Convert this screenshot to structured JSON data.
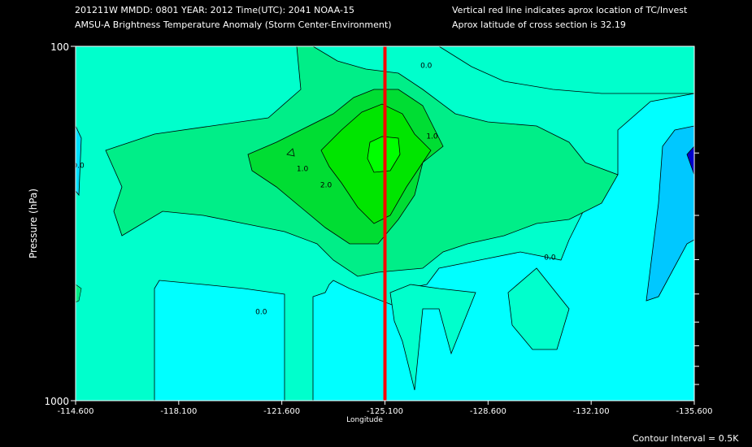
{
  "header": {
    "line1_left": "201211W  MMDD: 0801 YEAR: 2012 Time(UTC): 2041 NOAA-15",
    "line2_left": "AMSU-A Brightness Temperature Anomaly (Storm Center-Environment)",
    "line1_right": "Vertical red line indicates aprox location of TC/Invest",
    "line2_right": "Aprox latitude of cross section is 32.19"
  },
  "footer": {
    "contour_interval": "Contour Interval = 0.5K"
  },
  "colors": {
    "background": "#000000",
    "level_neg1_0": "#00c8ff",
    "level_neg2_neg1": "#0000cc",
    "level_0_1": "#00ffcc",
    "level_1_2": "#00ee88",
    "level_2_3": "#00dd33",
    "level_3_4": "#00e500",
    "level_n0_5_0": "#00ffff",
    "tc_line": "#ff0000",
    "contour_line": "#000000"
  },
  "chart_data": {
    "type": "contour",
    "title": "AMSU-A Brightness Temperature Anomaly (Storm Center-Environment)",
    "xlabel": "Longitude",
    "ylabel": "Pressure (hPa)",
    "xlim": [
      -114.6,
      -135.6
    ],
    "ylim": [
      1000,
      100
    ],
    "y_scale": "log",
    "x_ticks": [
      "-114.600",
      "-118.100",
      "-121.600",
      "-125.100",
      "-128.600",
      "-132.100",
      "-135.600"
    ],
    "y_ticks": [
      "100",
      "1000"
    ],
    "y_minor_ticks": [
      200,
      300,
      400,
      500,
      600,
      700,
      800,
      900
    ],
    "contour_interval_K": 0.5,
    "tc_longitude": -125.1,
    "cross_section_latitude": 32.19,
    "contour_labels": [
      {
        "text": "0.0",
        "lon": -126.5,
        "p": 115
      },
      {
        "text": "1.0",
        "lon": -126.7,
        "p": 182
      },
      {
        "text": "0.0",
        "lon": -114.7,
        "p": 220
      },
      {
        "text": "1.0",
        "lon": -122.3,
        "p": 225
      },
      {
        "text": "2.0",
        "lon": -123.1,
        "p": 250
      },
      {
        "text": "0.0",
        "lon": -130.7,
        "p": 400
      },
      {
        "text": "0.0",
        "lon": -120.9,
        "p": 570
      }
    ]
  }
}
